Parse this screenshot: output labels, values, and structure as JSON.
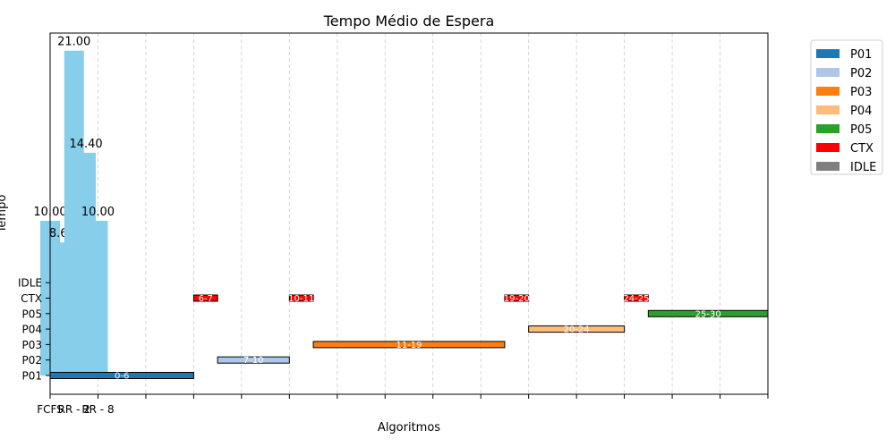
{
  "chart_data": {
    "type": "bar",
    "title": "Tempo Médio de Espera",
    "xlabel": "Algoritmos",
    "ylabel": "Tempo",
    "x_tick_labels": [
      "FCFS",
      "RR - 2",
      "RR - 8"
    ],
    "bars": [
      {
        "x": 0.0,
        "value": 10.0,
        "label": "10.00"
      },
      {
        "x": 0.5,
        "value": 8.6,
        "label": "8.60"
      },
      {
        "x": 1.0,
        "value": 21.0,
        "label": "21.00"
      },
      {
        "x": 1.5,
        "value": 14.4,
        "label": "14.40"
      },
      {
        "x": 2.0,
        "value": 10.0,
        "label": "10.00"
      }
    ],
    "bar_color": "#87ceeb",
    "y_tick_labels": [
      "P01",
      "P02",
      "P03",
      "P04",
      "P05",
      "CTX",
      "IDLE"
    ],
    "gantt": [
      {
        "row": "P01",
        "start": 0,
        "end": 6,
        "label": "0-6",
        "color": "#1f77b4"
      },
      {
        "row": "CTX",
        "start": 6,
        "end": 7,
        "label": "6-7",
        "color": "#ff0000"
      },
      {
        "row": "P02",
        "start": 7,
        "end": 10,
        "label": "7-10",
        "color": "#aec7e8"
      },
      {
        "row": "CTX",
        "start": 10,
        "end": 11,
        "label": "10-11",
        "color": "#ff0000"
      },
      {
        "row": "P03",
        "start": 11,
        "end": 19,
        "label": "11-19",
        "color": "#ff7f0e"
      },
      {
        "row": "CTX",
        "start": 19,
        "end": 20,
        "label": "19-20",
        "color": "#ff0000"
      },
      {
        "row": "P04",
        "start": 20,
        "end": 24,
        "label": "20-24",
        "color": "#ffbb78"
      },
      {
        "row": "CTX",
        "start": 24,
        "end": 25,
        "label": "24-25",
        "color": "#ff0000"
      },
      {
        "row": "P05",
        "start": 25,
        "end": 30,
        "label": "25-30",
        "color": "#2ca02c"
      }
    ],
    "legend": [
      {
        "name": "P01",
        "color": "#1f77b4"
      },
      {
        "name": "P02",
        "color": "#aec7e8"
      },
      {
        "name": "P03",
        "color": "#ff7f0e"
      },
      {
        "name": "P04",
        "color": "#ffbb78"
      },
      {
        "name": "P05",
        "color": "#2ca02c"
      },
      {
        "name": "CTX",
        "color": "#ff0000"
      },
      {
        "name": "IDLE",
        "color": "#7f7f7f"
      }
    ],
    "legend_position": "outside-right",
    "grid": "vertical-dashed",
    "xlim": [
      0,
      30
    ]
  }
}
